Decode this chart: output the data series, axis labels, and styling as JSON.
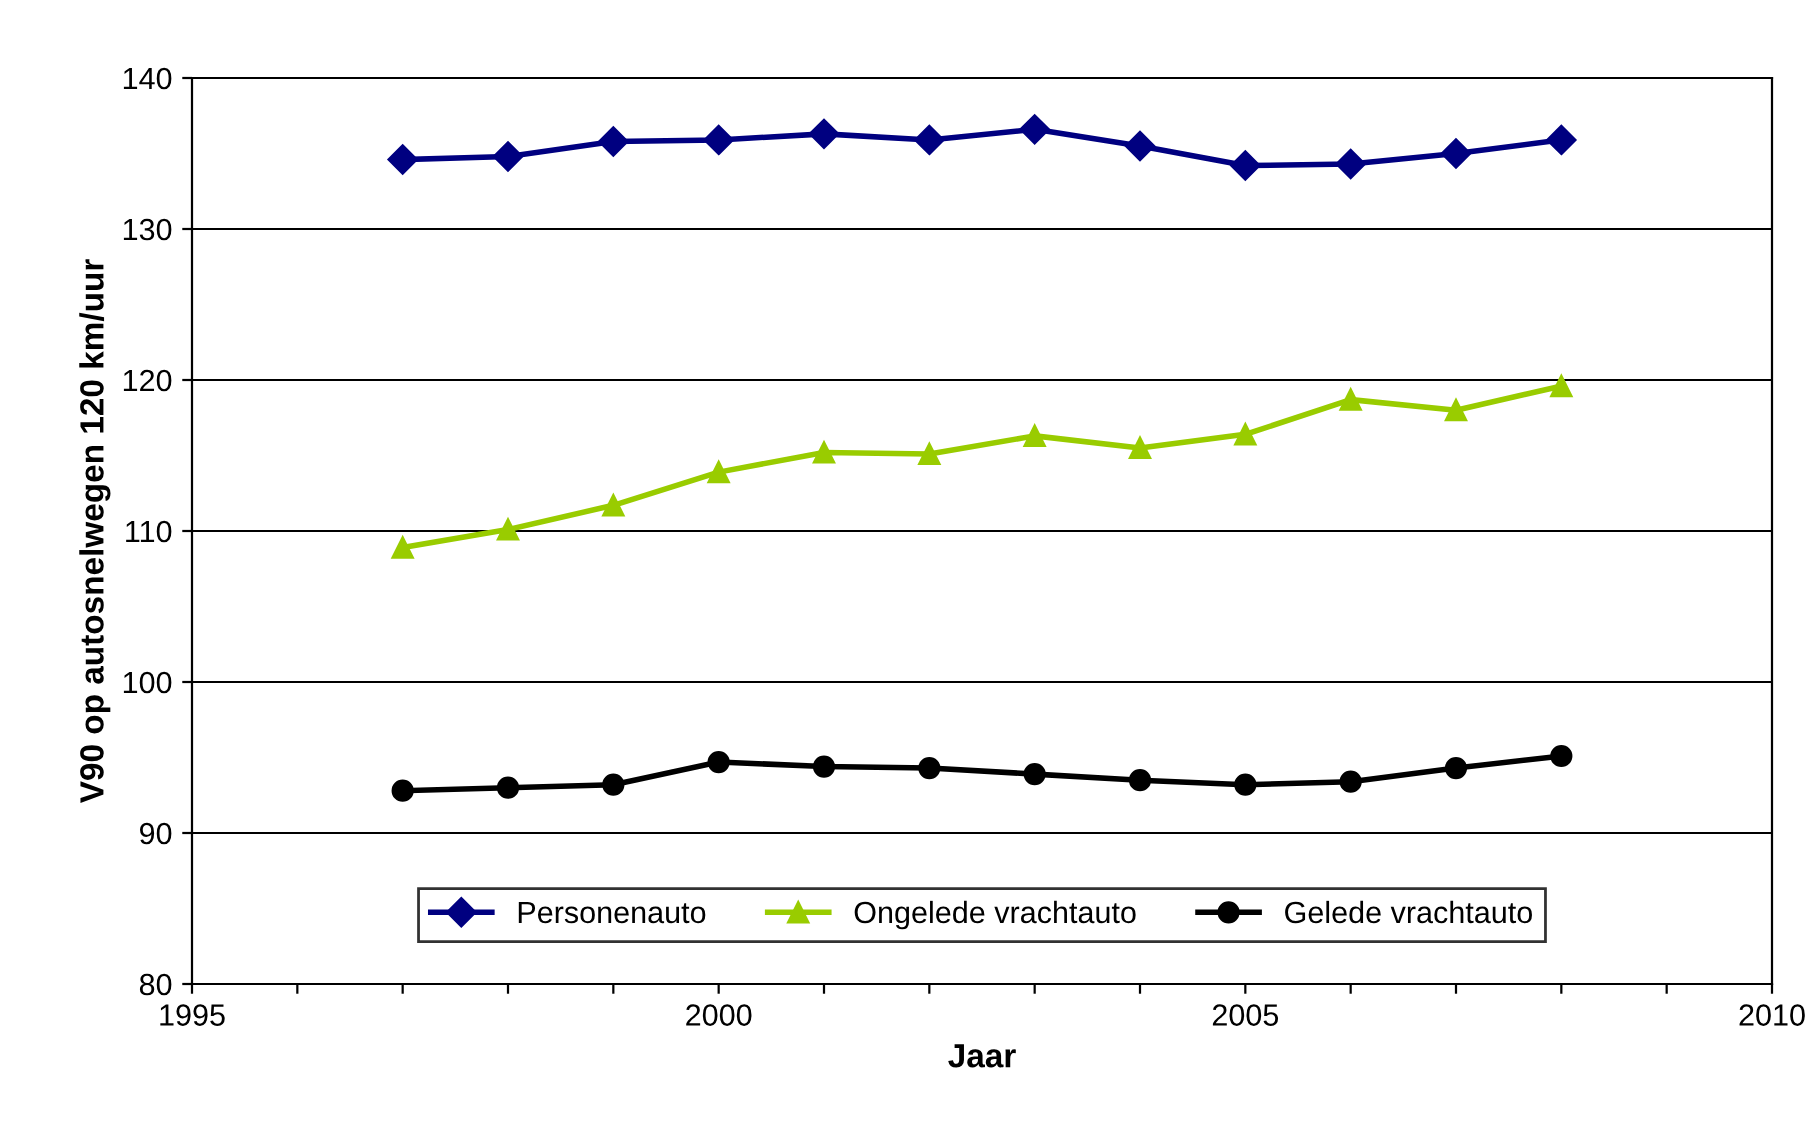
{
  "chart_data": {
    "type": "line",
    "xlabel": "Jaar",
    "ylabel": "V90 op autosnelwegen 120 km/uur",
    "x": [
      1997,
      1998,
      1999,
      2000,
      2001,
      2002,
      2003,
      2004,
      2005,
      2006,
      2007,
      2008
    ],
    "series": [
      {
        "name": "Personenauto",
        "color": "#000080",
        "marker": "diamond",
        "values": [
          134.6,
          134.8,
          135.8,
          135.9,
          136.3,
          135.9,
          136.6,
          135.5,
          134.2,
          134.3,
          135.0,
          135.9
        ]
      },
      {
        "name": "Ongelede vrachtauto",
        "color": "#99cc00",
        "marker": "triangle",
        "values": [
          108.9,
          110.1,
          111.7,
          113.9,
          115.2,
          115.1,
          116.3,
          115.5,
          116.4,
          118.7,
          118.0,
          119.6
        ]
      },
      {
        "name": "Gelede vrachtauto",
        "color": "#000000",
        "marker": "circle",
        "values": [
          92.8,
          93.0,
          93.2,
          94.7,
          94.4,
          94.3,
          93.9,
          93.5,
          93.2,
          93.4,
          94.3,
          95.1
        ]
      }
    ],
    "xlim": [
      1995,
      2010
    ],
    "xticks": [
      1995,
      {
        "value": 1996,
        "label": null
      },
      {
        "value": 1997,
        "label": null
      },
      {
        "value": 1998,
        "label": null
      },
      {
        "value": 1999,
        "label": null
      },
      2000,
      {
        "value": 2001,
        "label": null
      },
      {
        "value": 2002,
        "label": null
      },
      {
        "value": 2003,
        "label": null
      },
      {
        "value": 2004,
        "label": null
      },
      2005,
      {
        "value": 2006,
        "label": null
      },
      {
        "value": 2007,
        "label": null
      },
      {
        "value": 2008,
        "label": null
      },
      {
        "value": 2009,
        "label": null
      },
      2010
    ],
    "ylim": [
      80,
      140
    ],
    "yticks": [
      80,
      90,
      100,
      110,
      120,
      130,
      140
    ],
    "grid": "y",
    "legend": "bottom",
    "line_style": "solid"
  }
}
